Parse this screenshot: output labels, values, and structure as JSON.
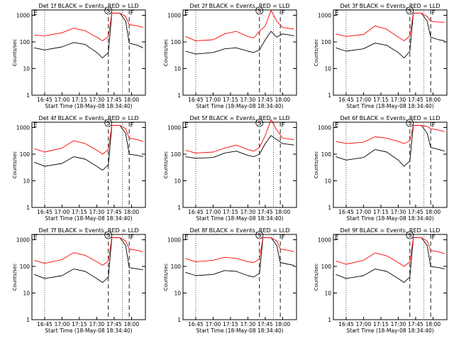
{
  "figure": {
    "start_time_label": "Start Time (18-May-08 18:34:40)",
    "ylabel": "Counts/sec",
    "letters": {
      "E": "E",
      "S": "S",
      "F": "F"
    }
  },
  "colors": {
    "events": "#000000",
    "lld": "#ff0000"
  },
  "chart_data": [
    {
      "type": "line",
      "title": "Det 1f BLACK = Events, RED = LLD",
      "xlabel": "Start Time (18-May-08 18:34:40)",
      "ylabel": "Counts/sec",
      "y_scale": "log",
      "ylim": [
        1,
        1000
      ],
      "x_ticks": [
        "16:45",
        "17:00",
        "17:15",
        "17:30",
        "17:45",
        "18:00"
      ],
      "y_ticks": [
        "1",
        "10",
        "100",
        "1000"
      ],
      "series": [
        {
          "name": "Events",
          "color": "#000000",
          "x": [
            "16:36",
            "16:45",
            "17:00",
            "17:10",
            "17:20",
            "17:30",
            "17:35",
            "17:40",
            "17:43",
            "17:50",
            "17:55",
            "17:58",
            "18:05",
            "18:10"
          ],
          "values": [
            60,
            50,
            65,
            95,
            80,
            40,
            25,
            40,
            1200,
            1200,
            600,
            90,
            75,
            60
          ]
        },
        {
          "name": "LLD",
          "color": "#ff0000",
          "x": [
            "16:36",
            "16:45",
            "17:00",
            "17:10",
            "17:20",
            "17:30",
            "17:35",
            "17:40",
            "17:43",
            "17:50",
            "17:55",
            "17:58",
            "18:05",
            "18:10"
          ],
          "values": [
            180,
            170,
            220,
            330,
            260,
            150,
            110,
            160,
            1200,
            1200,
            900,
            450,
            400,
            350
          ]
        }
      ]
    },
    {
      "type": "line",
      "title": "Det 2f BLACK = Events, RED = LLD",
      "xlabel": "Start Time (18-May-08 18:34:40)",
      "ylabel": "Counts/sec",
      "y_scale": "log",
      "ylim": [
        1,
        1000
      ],
      "x_ticks": [
        "16:45",
        "17:00",
        "17:15",
        "17:30",
        "17:45",
        "18:00"
      ],
      "y_ticks": [
        "1",
        "10",
        "100",
        "1000"
      ],
      "series": [
        {
          "name": "Events",
          "color": "#000000",
          "x": [
            "16:36",
            "16:45",
            "17:00",
            "17:10",
            "17:20",
            "17:30",
            "17:35",
            "17:40",
            "17:45",
            "17:50",
            "17:55",
            "18:00",
            "18:10"
          ],
          "values": [
            45,
            35,
            40,
            55,
            60,
            45,
            40,
            50,
            120,
            250,
            150,
            200,
            170
          ]
        },
        {
          "name": "LLD",
          "color": "#ff0000",
          "x": [
            "16:36",
            "16:45",
            "17:00",
            "17:10",
            "17:20",
            "17:30",
            "17:35",
            "17:40",
            "17:45",
            "17:50",
            "17:55",
            "18:00",
            "18:10"
          ],
          "values": [
            160,
            110,
            120,
            200,
            250,
            160,
            140,
            250,
            400,
            1500,
            600,
            350,
            300
          ]
        }
      ]
    },
    {
      "type": "line",
      "title": "Det 3f BLACK = Events, RED = LLD",
      "xlabel": "Start Time (18-May-08 18:34:40)",
      "ylabel": "Counts/sec",
      "y_scale": "log",
      "ylim": [
        1,
        1000
      ],
      "x_ticks": [
        "16:45",
        "17:00",
        "17:15",
        "17:30",
        "17:45",
        "18:00"
      ],
      "y_ticks": [
        "1",
        "10",
        "100",
        "1000"
      ],
      "series": [
        {
          "name": "Events",
          "color": "#000000",
          "x": [
            "16:36",
            "16:45",
            "17:00",
            "17:10",
            "17:20",
            "17:30",
            "17:35",
            "17:40",
            "17:43",
            "17:50",
            "17:55",
            "17:58",
            "18:05",
            "18:10"
          ],
          "values": [
            60,
            45,
            55,
            90,
            75,
            40,
            25,
            45,
            1200,
            1200,
            600,
            150,
            120,
            110
          ]
        },
        {
          "name": "LLD",
          "color": "#ff0000",
          "x": [
            "16:36",
            "16:45",
            "17:00",
            "17:10",
            "17:20",
            "17:30",
            "17:35",
            "17:40",
            "17:43",
            "17:50",
            "17:55",
            "17:58",
            "18:05",
            "18:10"
          ],
          "values": [
            200,
            160,
            190,
            400,
            300,
            150,
            110,
            170,
            1200,
            1200,
            900,
            600,
            550,
            550
          ]
        }
      ]
    },
    {
      "type": "line",
      "title": "Det 4f BLACK = Events, RED = LLD",
      "xlabel": "Start Time (18-May-08 18:34:40)",
      "ylabel": "Counts/sec",
      "y_scale": "log",
      "ylim": [
        1,
        1000
      ],
      "x_ticks": [
        "16:45",
        "17:00",
        "17:15",
        "17:30",
        "17:45",
        "18:00"
      ],
      "y_ticks": [
        "1",
        "10",
        "100",
        "1000"
      ],
      "series": [
        {
          "name": "Events",
          "color": "#000000",
          "x": [
            "16:36",
            "16:45",
            "17:00",
            "17:10",
            "17:20",
            "17:30",
            "17:35",
            "17:40",
            "17:43",
            "17:50",
            "17:55",
            "17:58",
            "18:05",
            "18:10"
          ],
          "values": [
            50,
            35,
            45,
            80,
            65,
            35,
            25,
            40,
            1200,
            1200,
            600,
            100,
            90,
            80
          ]
        },
        {
          "name": "LLD",
          "color": "#ff0000",
          "x": [
            "16:36",
            "16:45",
            "17:00",
            "17:10",
            "17:20",
            "17:30",
            "17:35",
            "17:40",
            "17:43",
            "17:50",
            "17:55",
            "17:58",
            "18:05",
            "18:10"
          ],
          "values": [
            160,
            120,
            170,
            320,
            250,
            140,
            100,
            150,
            1200,
            1200,
            900,
            400,
            350,
            300
          ]
        }
      ]
    },
    {
      "type": "line",
      "title": "Det 5f BLACK = Events, RED = LLD",
      "xlabel": "Start Time (18-May-08 18:34:40)",
      "ylabel": "Counts/sec",
      "y_scale": "log",
      "ylim": [
        1,
        1000
      ],
      "x_ticks": [
        "16:45",
        "17:00",
        "17:15",
        "17:30",
        "17:45",
        "18:00"
      ],
      "y_ticks": [
        "1",
        "10",
        "100",
        "1000"
      ],
      "series": [
        {
          "name": "Events",
          "color": "#000000",
          "x": [
            "16:36",
            "16:45",
            "17:00",
            "17:10",
            "17:20",
            "17:30",
            "17:35",
            "17:40",
            "17:45",
            "17:50",
            "17:55",
            "18:00",
            "18:10"
          ],
          "values": [
            80,
            70,
            75,
            110,
            130,
            90,
            80,
            100,
            250,
            500,
            350,
            250,
            220
          ]
        },
        {
          "name": "LLD",
          "color": "#ff0000",
          "x": [
            "16:36",
            "16:45",
            "17:00",
            "17:10",
            "17:20",
            "17:30",
            "17:35",
            "17:40",
            "17:45",
            "17:50",
            "17:55",
            "18:00",
            "18:10"
          ],
          "values": [
            140,
            110,
            120,
            170,
            220,
            150,
            130,
            180,
            500,
            2000,
            800,
            400,
            350
          ]
        }
      ]
    },
    {
      "type": "line",
      "title": "Det 6f BLACK = Events, RED = LLD",
      "xlabel": "Start Time (18-May-08 18:34:40)",
      "ylabel": "Counts/sec",
      "y_scale": "log",
      "ylim": [
        1,
        1000
      ],
      "x_ticks": [
        "16:45",
        "17:00",
        "17:15",
        "17:30",
        "17:45",
        "18:00"
      ],
      "y_ticks": [
        "1",
        "10",
        "100",
        "1000"
      ],
      "series": [
        {
          "name": "Events",
          "color": "#000000",
          "x": [
            "16:36",
            "16:45",
            "17:00",
            "17:10",
            "17:20",
            "17:30",
            "17:35",
            "17:40",
            "17:43",
            "17:50",
            "17:55",
            "17:58",
            "18:05",
            "18:10"
          ],
          "values": [
            80,
            60,
            75,
            150,
            120,
            60,
            35,
            55,
            1200,
            1200,
            600,
            180,
            150,
            130
          ]
        },
        {
          "name": "LLD",
          "color": "#ff0000",
          "x": [
            "16:36",
            "16:45",
            "17:00",
            "17:10",
            "17:20",
            "17:30",
            "17:35",
            "17:40",
            "17:43",
            "17:50",
            "17:55",
            "17:58",
            "18:05",
            "18:10"
          ],
          "values": [
            300,
            250,
            280,
            450,
            400,
            300,
            250,
            320,
            1200,
            1200,
            1100,
            900,
            800,
            700
          ]
        }
      ]
    },
    {
      "type": "line",
      "title": "Det 7f BLACK = Events, RED = LLD",
      "xlabel": "Start Time (18-May-08 18:34:40)",
      "ylabel": "Counts/sec",
      "y_scale": "log",
      "ylim": [
        1,
        1000
      ],
      "x_ticks": [
        "16:45",
        "17:00",
        "17:15",
        "17:30",
        "17:45",
        "18:00"
      ],
      "y_ticks": [
        "1",
        "10",
        "100",
        "1000"
      ],
      "series": [
        {
          "name": "Events",
          "color": "#000000",
          "x": [
            "16:36",
            "16:45",
            "17:00",
            "17:10",
            "17:20",
            "17:30",
            "17:35",
            "17:40",
            "17:43",
            "17:50",
            "17:55",
            "17:58",
            "18:05",
            "18:10"
          ],
          "values": [
            50,
            35,
            45,
            80,
            65,
            35,
            25,
            40,
            1200,
            1200,
            600,
            90,
            80,
            75
          ]
        },
        {
          "name": "LLD",
          "color": "#ff0000",
          "x": [
            "16:36",
            "16:45",
            "17:00",
            "17:10",
            "17:20",
            "17:30",
            "17:35",
            "17:40",
            "17:43",
            "17:50",
            "17:55",
            "17:58",
            "18:05",
            "18:10"
          ],
          "values": [
            170,
            130,
            180,
            330,
            260,
            150,
            110,
            160,
            1200,
            1200,
            900,
            450,
            400,
            350
          ]
        }
      ]
    },
    {
      "type": "line",
      "title": "Det 8f BLACK = Events, RED = LLD",
      "xlabel": "Start Time (18-May-08 18:34:40)",
      "ylabel": "Counts/sec",
      "y_scale": "log",
      "ylim": [
        1,
        1000
      ],
      "x_ticks": [
        "16:45",
        "17:00",
        "17:15",
        "17:30",
        "17:45",
        "18:00"
      ],
      "y_ticks": [
        "1",
        "10",
        "100",
        "1000"
      ],
      "series": [
        {
          "name": "Events",
          "color": "#000000",
          "x": [
            "16:36",
            "16:45",
            "17:00",
            "17:10",
            "17:20",
            "17:30",
            "17:35",
            "17:40",
            "17:43",
            "17:50",
            "17:55",
            "17:58",
            "18:05",
            "18:10"
          ],
          "values": [
            60,
            45,
            50,
            70,
            65,
            45,
            40,
            55,
            1200,
            1200,
            600,
            140,
            120,
            110
          ]
        },
        {
          "name": "LLD",
          "color": "#ff0000",
          "x": [
            "16:36",
            "16:45",
            "17:00",
            "17:10",
            "17:20",
            "17:30",
            "17:35",
            "17:40",
            "17:43",
            "17:50",
            "17:55",
            "17:58",
            "18:05",
            "18:10"
          ],
          "values": [
            200,
            150,
            170,
            220,
            200,
            150,
            140,
            190,
            1200,
            1200,
            900,
            450,
            400,
            350
          ]
        }
      ]
    },
    {
      "type": "line",
      "title": "Det 9f BLACK = Events, RED = LLD",
      "xlabel": "Start Time (18-May-08 18:34:40)",
      "ylabel": "Counts/sec",
      "y_scale": "log",
      "ylim": [
        1,
        1000
      ],
      "x_ticks": [
        "16:45",
        "17:00",
        "17:15",
        "17:30",
        "17:45",
        "18:00"
      ],
      "y_ticks": [
        "1",
        "10",
        "100",
        "1000"
      ],
      "series": [
        {
          "name": "Events",
          "color": "#000000",
          "x": [
            "16:36",
            "16:45",
            "17:00",
            "17:10",
            "17:20",
            "17:30",
            "17:35",
            "17:40",
            "17:43",
            "17:50",
            "17:55",
            "17:58",
            "18:05",
            "18:10"
          ],
          "values": [
            50,
            35,
            45,
            80,
            65,
            35,
            25,
            40,
            1200,
            1200,
            600,
            100,
            90,
            80
          ]
        },
        {
          "name": "LLD",
          "color": "#ff0000",
          "x": [
            "16:36",
            "16:45",
            "17:00",
            "17:10",
            "17:20",
            "17:30",
            "17:35",
            "17:40",
            "17:43",
            "17:50",
            "17:55",
            "17:58",
            "18:05",
            "18:10"
          ],
          "values": [
            160,
            120,
            170,
            320,
            250,
            140,
            100,
            150,
            1200,
            1200,
            900,
            400,
            350,
            300
          ]
        }
      ]
    }
  ]
}
